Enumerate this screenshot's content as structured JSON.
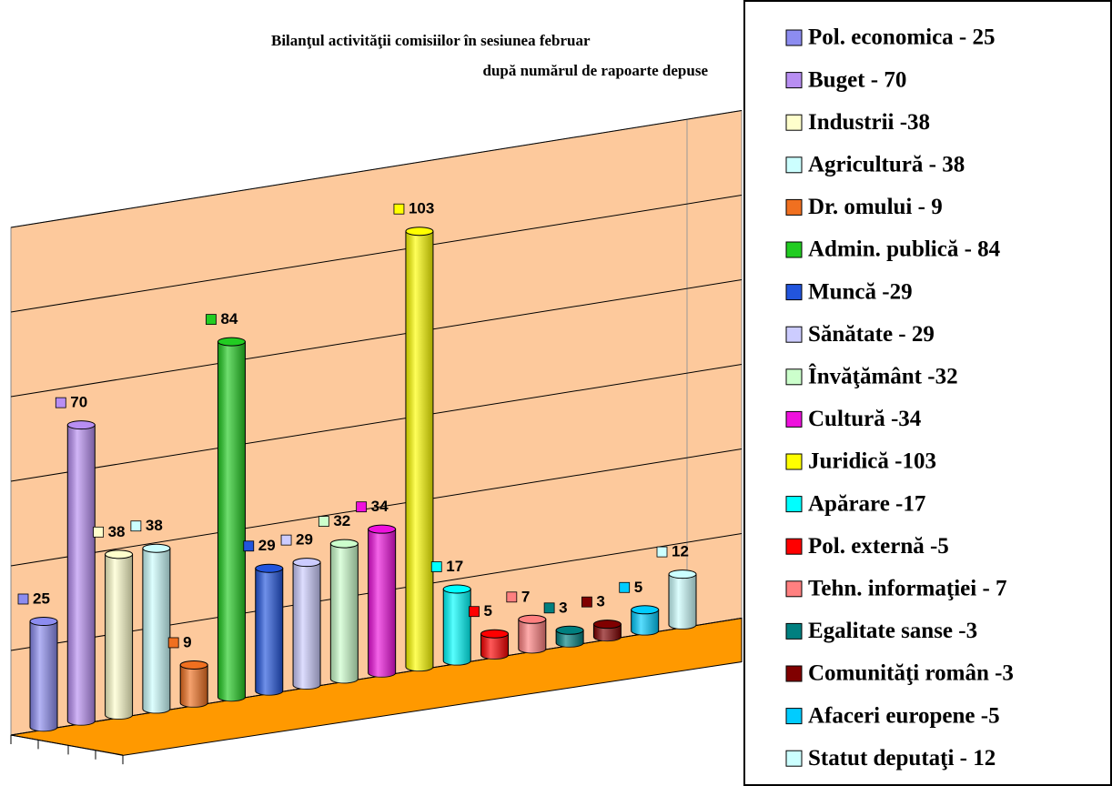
{
  "chart_data": {
    "type": "bar",
    "title": "Bilanţul activităţii comisiilor în sesiunea februar",
    "subtitle": "după numărul de rapoarte depuse",
    "categories": [
      "Pol. economica - 25",
      "Buget  - 70",
      "Industrii  -38",
      "Agricultură - 38",
      "Dr. omului - 9",
      "Admin. publică - 84",
      "Muncă -29",
      "Sănătate - 29",
      "Învăţământ -32",
      "Cultură -34",
      "Juridică -103",
      "Apărare -17",
      "Pol. externă -5",
      "Tehn. informaţiei - 7",
      "Egalitate sanse -3",
      "Comunităţi român -3",
      "Afaceri europene -5",
      "Statut deputaţi - 12"
    ],
    "values": [
      25,
      70,
      38,
      38,
      9,
      84,
      29,
      29,
      32,
      34,
      103,
      17,
      5,
      7,
      3,
      3,
      5,
      12
    ],
    "colors": [
      "#8c8cf0",
      "#b88ef2",
      "#ffffcc",
      "#ccffff",
      "#f07020",
      "#22cc22",
      "#2255dd",
      "#ccccff",
      "#ccffcc",
      "#ee11dd",
      "#ffff00",
      "#00ffff",
      "#ff0000",
      "#ff8080",
      "#008080",
      "#800000",
      "#00ccff",
      "#ccffff"
    ],
    "ylim": [
      0,
      120
    ],
    "yticks": [
      0,
      20,
      40,
      60,
      80,
      100,
      120
    ],
    "grid": true,
    "legend": "right"
  }
}
